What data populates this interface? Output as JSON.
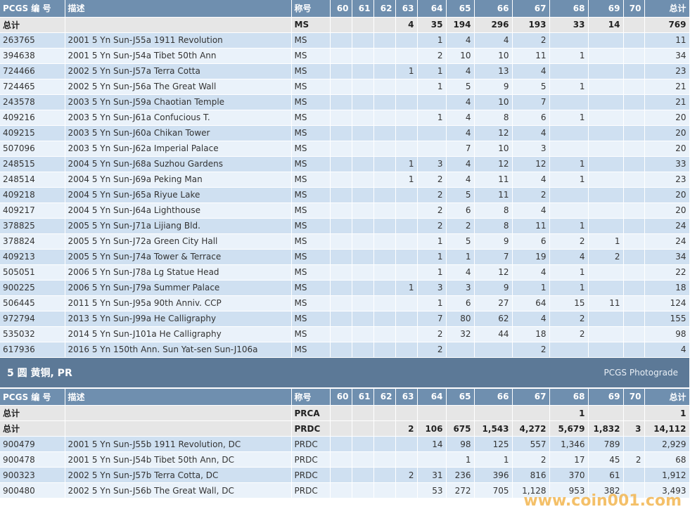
{
  "header": {
    "id": "PCGS 编 号",
    "desc": "描述",
    "name": "称号",
    "grades": [
      "60",
      "61",
      "62",
      "63",
      "64",
      "65",
      "66",
      "67",
      "68",
      "69",
      "70"
    ],
    "total": "总计"
  },
  "table1": {
    "total_row": {
      "id": "总计",
      "desc": "",
      "name": "MS",
      "cells": [
        "",
        "",
        "",
        "4",
        "35",
        "194",
        "296",
        "193",
        "33",
        "14",
        ""
      ],
      "total": "769"
    },
    "rows": [
      {
        "id": "263765",
        "desc": "2001 5 Yn Sun-J55a 1911 Revolution",
        "name": "MS",
        "cells": [
          "",
          "",
          "",
          "",
          "1",
          "4",
          "4",
          "2",
          "",
          "",
          ""
        ],
        "total": "11"
      },
      {
        "id": "394638",
        "desc": "2001 5 Yn Sun-J54a Tibet 50th Ann",
        "name": "MS",
        "cells": [
          "",
          "",
          "",
          "",
          "2",
          "10",
          "10",
          "11",
          "1",
          "",
          ""
        ],
        "total": "34"
      },
      {
        "id": "724466",
        "desc": "2002 5 Yn Sun-J57a Terra Cotta",
        "name": "MS",
        "cells": [
          "",
          "",
          "",
          "1",
          "1",
          "4",
          "13",
          "4",
          "",
          "",
          ""
        ],
        "total": "23"
      },
      {
        "id": "724465",
        "desc": "2002 5 Yn Sun-J56a The Great Wall",
        "name": "MS",
        "cells": [
          "",
          "",
          "",
          "",
          "1",
          "5",
          "9",
          "5",
          "1",
          "",
          ""
        ],
        "total": "21"
      },
      {
        "id": "243578",
        "desc": "2003 5 Yn Sun-J59a Chaotian Temple",
        "name": "MS",
        "cells": [
          "",
          "",
          "",
          "",
          "",
          "4",
          "10",
          "7",
          "",
          "",
          ""
        ],
        "total": "21"
      },
      {
        "id": "409216",
        "desc": "2003 5 Yn Sun-J61a Confucious T.",
        "name": "MS",
        "cells": [
          "",
          "",
          "",
          "",
          "1",
          "4",
          "8",
          "6",
          "1",
          "",
          ""
        ],
        "total": "20"
      },
      {
        "id": "409215",
        "desc": "2003 5 Yn Sun-J60a Chikan Tower",
        "name": "MS",
        "cells": [
          "",
          "",
          "",
          "",
          "",
          "4",
          "12",
          "4",
          "",
          "",
          ""
        ],
        "total": "20"
      },
      {
        "id": "507096",
        "desc": "2003 5 Yn Sun-J62a Imperial Palace",
        "name": "MS",
        "cells": [
          "",
          "",
          "",
          "",
          "",
          "7",
          "10",
          "3",
          "",
          "",
          ""
        ],
        "total": "20"
      },
      {
        "id": "248515",
        "desc": "2004 5 Yn Sun-J68a Suzhou Gardens",
        "name": "MS",
        "cells": [
          "",
          "",
          "",
          "1",
          "3",
          "4",
          "12",
          "12",
          "1",
          "",
          ""
        ],
        "total": "33"
      },
      {
        "id": "248514",
        "desc": "2004 5 Yn Sun-J69a Peking Man",
        "name": "MS",
        "cells": [
          "",
          "",
          "",
          "1",
          "2",
          "4",
          "11",
          "4",
          "1",
          "",
          ""
        ],
        "total": "23"
      },
      {
        "id": "409218",
        "desc": "2004 5 Yn Sun-J65a Riyue Lake",
        "name": "MS",
        "cells": [
          "",
          "",
          "",
          "",
          "2",
          "5",
          "11",
          "2",
          "",
          "",
          ""
        ],
        "total": "20"
      },
      {
        "id": "409217",
        "desc": "2004 5 Yn Sun-J64a Lighthouse",
        "name": "MS",
        "cells": [
          "",
          "",
          "",
          "",
          "2",
          "6",
          "8",
          "4",
          "",
          "",
          ""
        ],
        "total": "20"
      },
      {
        "id": "378825",
        "desc": "2005 5 Yn Sun-J71a Lijiang Bld.",
        "name": "MS",
        "cells": [
          "",
          "",
          "",
          "",
          "2",
          "2",
          "8",
          "11",
          "1",
          "",
          ""
        ],
        "total": "24"
      },
      {
        "id": "378824",
        "desc": "2005 5 Yn Sun-J72a Green City Hall",
        "name": "MS",
        "cells": [
          "",
          "",
          "",
          "",
          "1",
          "5",
          "9",
          "6",
          "2",
          "1",
          ""
        ],
        "total": "24"
      },
      {
        "id": "409213",
        "desc": "2005 5 Yn Sun-J74a Tower & Terrace",
        "name": "MS",
        "cells": [
          "",
          "",
          "",
          "",
          "1",
          "1",
          "7",
          "19",
          "4",
          "2",
          ""
        ],
        "total": "34"
      },
      {
        "id": "505051",
        "desc": "2006 5 Yn Sun-J78a Lg Statue Head",
        "name": "MS",
        "cells": [
          "",
          "",
          "",
          "",
          "1",
          "4",
          "12",
          "4",
          "1",
          "",
          ""
        ],
        "total": "22"
      },
      {
        "id": "900225",
        "desc": "2006 5 Yn Sun-J79a Summer Palace",
        "name": "MS",
        "cells": [
          "",
          "",
          "",
          "1",
          "3",
          "3",
          "9",
          "1",
          "1",
          "",
          ""
        ],
        "total": "18"
      },
      {
        "id": "506445",
        "desc": "2011 5 Yn Sun-J95a 90th Anniv. CCP",
        "name": "MS",
        "cells": [
          "",
          "",
          "",
          "",
          "1",
          "6",
          "27",
          "64",
          "15",
          "11",
          ""
        ],
        "total": "124"
      },
      {
        "id": "972794",
        "desc": "2013 5 Yn Sun-J99a He Calligraphy",
        "name": "MS",
        "cells": [
          "",
          "",
          "",
          "",
          "7",
          "80",
          "62",
          "4",
          "2",
          "",
          ""
        ],
        "total": "155"
      },
      {
        "id": "535032",
        "desc": "2014 5 Yn Sun-J101a He Calligraphy",
        "name": "MS",
        "cells": [
          "",
          "",
          "",
          "",
          "2",
          "32",
          "44",
          "18",
          "2",
          "",
          ""
        ],
        "total": "98"
      },
      {
        "id": "617936",
        "desc": "2016 5 Yn 150th Ann. Sun Yat-sen Sun-J106a",
        "name": "MS",
        "cells": [
          "",
          "",
          "",
          "",
          "2",
          "",
          "",
          "2",
          "",
          "",
          ""
        ],
        "total": "4"
      }
    ]
  },
  "section2": {
    "title": "5 圆 黄铜, PR",
    "photograde": "PCGS Photograde"
  },
  "table2": {
    "total_rows": [
      {
        "id": "总计",
        "desc": "",
        "name": "PRCA",
        "cells": [
          "",
          "",
          "",
          "",
          "",
          "",
          "",
          "",
          "1",
          "",
          ""
        ],
        "total": "1"
      },
      {
        "id": "总计",
        "desc": "",
        "name": "PRDC",
        "cells": [
          "",
          "",
          "",
          "2",
          "106",
          "675",
          "1,543",
          "4,272",
          "5,679",
          "1,832",
          "3"
        ],
        "total": "14,112"
      }
    ],
    "rows": [
      {
        "id": "900479",
        "desc": "2001 5 Yn Sun-J55b 1911 Revolution, DC",
        "name": "PRDC",
        "cells": [
          "",
          "",
          "",
          "",
          "14",
          "98",
          "125",
          "557",
          "1,346",
          "789",
          ""
        ],
        "total": "2,929"
      },
      {
        "id": "900478",
        "desc": "2001 5 Yn Sun-J54b Tibet 50th Ann, DC",
        "name": "PRDC",
        "cells": [
          "",
          "",
          "",
          "",
          "",
          "1",
          "1",
          "2",
          "17",
          "45",
          "2"
        ],
        "total": "68"
      },
      {
        "id": "900323",
        "desc": "2002 5 Yn Sun-J57b Terra Cotta, DC",
        "name": "PRDC",
        "cells": [
          "",
          "",
          "",
          "2",
          "31",
          "236",
          "396",
          "816",
          "370",
          "61",
          ""
        ],
        "total": "1,912"
      },
      {
        "id": "900480",
        "desc": "2002 5 Yn Sun-J56b The Great Wall, DC",
        "name": "PRDC",
        "cells": [
          "",
          "",
          "",
          "",
          "53",
          "272",
          "705",
          "1,128",
          "953",
          "382",
          ""
        ],
        "total": "3,493"
      }
    ]
  },
  "watermark": "www.coin001.com"
}
